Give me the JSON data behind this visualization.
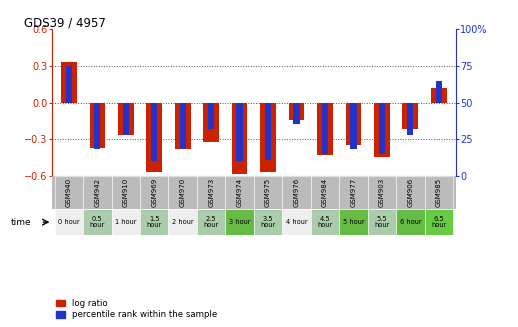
{
  "title": "GDS39 / 4957",
  "samples": [
    "GSM940",
    "GSM942",
    "GSM910",
    "GSM969",
    "GSM970",
    "GSM973",
    "GSM974",
    "GSM975",
    "GSM976",
    "GSM984",
    "GSM977",
    "GSM903",
    "GSM906",
    "GSM985"
  ],
  "time_labels": [
    "0 hour",
    "0.5\nhour",
    "1 hour",
    "1.5\nhour",
    "2 hour",
    "2.5\nhour",
    "3 hour",
    "3.5\nhour",
    "4 hour",
    "4.5\nhour",
    "5 hour",
    "5.5\nhour",
    "6 hour",
    "6.5\nhour"
  ],
  "log_ratio": [
    0.33,
    -0.37,
    -0.27,
    -0.57,
    -0.38,
    -0.32,
    -0.59,
    -0.57,
    -0.14,
    -0.43,
    -0.35,
    -0.45,
    -0.22,
    0.12
  ],
  "percentile": [
    75,
    18,
    28,
    10,
    18,
    32,
    10,
    11,
    35,
    15,
    18,
    15,
    28,
    65
  ],
  "ylim_left": [
    -0.6,
    0.6
  ],
  "ylim_right": [
    0,
    100
  ],
  "yticks_left": [
    -0.6,
    -0.3,
    0,
    0.3,
    0.6
  ],
  "yticks_right": [
    0,
    25,
    50,
    75,
    100
  ],
  "bar_color_red": "#cc2200",
  "bar_color_blue": "#2233cc",
  "header_bg": "#bbbbbb",
  "left_axis_color": "#cc2200",
  "right_axis_color": "#2233cc",
  "time_colors": [
    "#eeeeee",
    "#aaccaa",
    "#eeeeee",
    "#aaccaa",
    "#eeeeee",
    "#aaccaa",
    "#66bb44",
    "#aaccaa",
    "#eeeeee",
    "#aaccaa",
    "#66bb44",
    "#aaccaa",
    "#66bb44",
    "#66cc44"
  ]
}
